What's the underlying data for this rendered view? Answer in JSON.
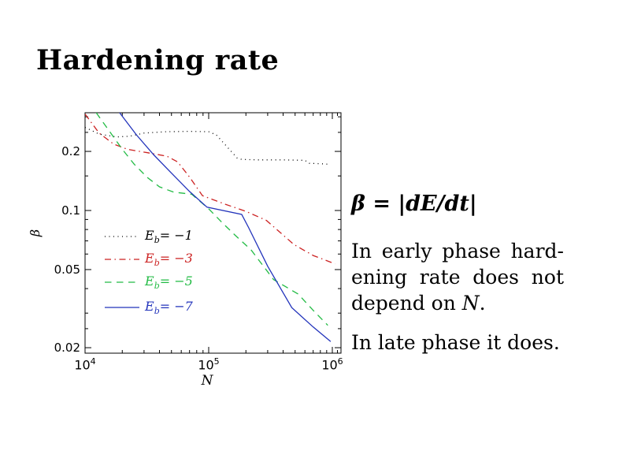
{
  "slide": {
    "title": "Hardening rate"
  },
  "chart_data": {
    "type": "line",
    "x_scale": "log",
    "y_scale": "log",
    "xlabel": "N",
    "ylabel": "β",
    "xlim": [
      10000,
      1175000
    ],
    "ylim": [
      0.0188,
      0.315
    ],
    "grid": false,
    "legend_position": "inside-left-middle",
    "x_ticks": [
      {
        "base": "10",
        "exp": "4",
        "value": 10000
      },
      {
        "base": "10",
        "exp": "5",
        "value": 100000
      },
      {
        "base": "10",
        "exp": "6",
        "value": 1000000
      }
    ],
    "x_minor_ticks": [
      20000,
      30000,
      40000,
      50000,
      60000,
      70000,
      80000,
      90000,
      200000,
      300000,
      400000,
      500000,
      600000,
      700000,
      800000,
      900000,
      1100000
    ],
    "y_ticks": [
      {
        "label": "0.2",
        "value": 0.2
      },
      {
        "label": "0.1",
        "value": 0.1
      },
      {
        "label": "0.05",
        "value": 0.05
      },
      {
        "label": "0.02",
        "value": 0.02
      }
    ],
    "y_minor_ticks": [
      0.025,
      0.03,
      0.04,
      0.06,
      0.07,
      0.08,
      0.09,
      0.15,
      0.25,
      0.3
    ],
    "series": [
      {
        "name": "Eb = -1",
        "legend": {
          "var": "E",
          "sub": "b",
          "eq": "= −1"
        },
        "color": "#000000",
        "style": "dotted",
        "points": [
          [
            10000,
            0.265
          ],
          [
            13000,
            0.245
          ],
          [
            18000,
            0.237
          ],
          [
            23000,
            0.239
          ],
          [
            30000,
            0.248
          ],
          [
            45000,
            0.252
          ],
          [
            70000,
            0.253
          ],
          [
            100000,
            0.252
          ],
          [
            115000,
            0.243
          ],
          [
            140000,
            0.212
          ],
          [
            170000,
            0.185
          ],
          [
            185000,
            0.182
          ],
          [
            250000,
            0.181
          ],
          [
            400000,
            0.181
          ],
          [
            600000,
            0.18
          ],
          [
            650000,
            0.174
          ],
          [
            800000,
            0.173
          ],
          [
            950000,
            0.172
          ]
        ]
      },
      {
        "name": "Eb = -3",
        "legend": {
          "var": "E",
          "sub": "b",
          "eq": "= −3"
        },
        "color": "#cc2222",
        "style": "dashdot",
        "points": [
          [
            10000,
            0.31
          ],
          [
            13000,
            0.248
          ],
          [
            17000,
            0.218
          ],
          [
            22000,
            0.205
          ],
          [
            32000,
            0.197
          ],
          [
            46000,
            0.189
          ],
          [
            56000,
            0.177
          ],
          [
            70000,
            0.148
          ],
          [
            89000,
            0.119
          ],
          [
            134000,
            0.108
          ],
          [
            200000,
            0.099
          ],
          [
            293000,
            0.089
          ],
          [
            490000,
            0.067
          ],
          [
            700000,
            0.059
          ],
          [
            1050000,
            0.0535
          ]
        ]
      },
      {
        "name": "Eb = -5",
        "legend": {
          "var": "E",
          "sub": "b",
          "eq": "= −5"
        },
        "color": "#22bb44",
        "style": "dashed",
        "points": [
          [
            12300,
            0.315
          ],
          [
            16000,
            0.25
          ],
          [
            20000,
            0.205
          ],
          [
            25000,
            0.172
          ],
          [
            32000,
            0.147
          ],
          [
            40000,
            0.132
          ],
          [
            52000,
            0.124
          ],
          [
            73000,
            0.121
          ],
          [
            100000,
            0.102
          ],
          [
            128000,
            0.087
          ],
          [
            163000,
            0.075
          ],
          [
            220000,
            0.063
          ],
          [
            335000,
            0.0445
          ],
          [
            530000,
            0.0375
          ],
          [
            700000,
            0.031
          ],
          [
            920000,
            0.026
          ]
        ]
      },
      {
        "name": "Eb = -7",
        "legend": {
          "var": "E",
          "sub": "b",
          "eq": "= −7"
        },
        "color": "#2233bb",
        "style": "solid",
        "points": [
          [
            19000,
            0.315
          ],
          [
            26000,
            0.243
          ],
          [
            36000,
            0.192
          ],
          [
            50000,
            0.155
          ],
          [
            70000,
            0.125
          ],
          [
            97000,
            0.104
          ],
          [
            185000,
            0.0955
          ],
          [
            210000,
            0.082
          ],
          [
            300000,
            0.052
          ],
          [
            470000,
            0.032
          ],
          [
            700000,
            0.0255
          ],
          [
            970000,
            0.0215
          ]
        ]
      }
    ]
  },
  "annotation": {
    "equation": "β = |dE/dt|",
    "para1_line1": "In early phase hard-",
    "para1_line2": "ening rate does not",
    "para1_line3": {
      "pre": "depend on ",
      "var": "N",
      "post": "."
    },
    "para2": "In late phase it does."
  }
}
